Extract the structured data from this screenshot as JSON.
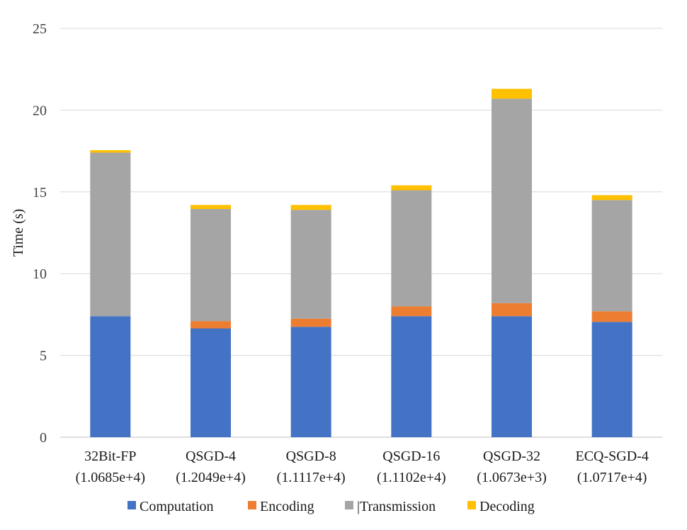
{
  "chart_data": {
    "type": "bar",
    "stacked": true,
    "ylabel": "Time (s)",
    "xlabel": "",
    "ylim": [
      0,
      25
    ],
    "yticks": [
      0,
      5,
      10,
      15,
      20,
      25
    ],
    "grid": true,
    "legend_position": "bottom",
    "categories": [
      "32Bit-FP",
      "QSGD-4",
      "QSGD-8",
      "QSGD-16",
      "QSGD-32",
      "ECQ-SGD-4"
    ],
    "category_sublabels": [
      "(1.0685e+4)",
      "(1.2049e+4)",
      "(1.1117e+4)",
      "(1.1102e+4)",
      "(1.0673e+3)",
      "(1.0717e+4)"
    ],
    "series": [
      {
        "name": "Computation",
        "color": "#4472C4",
        "values": [
          7.4,
          6.65,
          6.75,
          7.4,
          7.4,
          7.05
        ]
      },
      {
        "name": "Encoding",
        "color": "#ED7D31",
        "values": [
          0.0,
          0.45,
          0.5,
          0.6,
          0.8,
          0.65
        ]
      },
      {
        "name": "|Transmission",
        "color": "#A5A5A5",
        "values": [
          10.0,
          6.85,
          6.65,
          7.1,
          12.5,
          6.8
        ]
      },
      {
        "name": "Decoding",
        "color": "#FFC000",
        "values": [
          0.15,
          0.25,
          0.3,
          0.3,
          0.6,
          0.3
        ]
      }
    ]
  }
}
